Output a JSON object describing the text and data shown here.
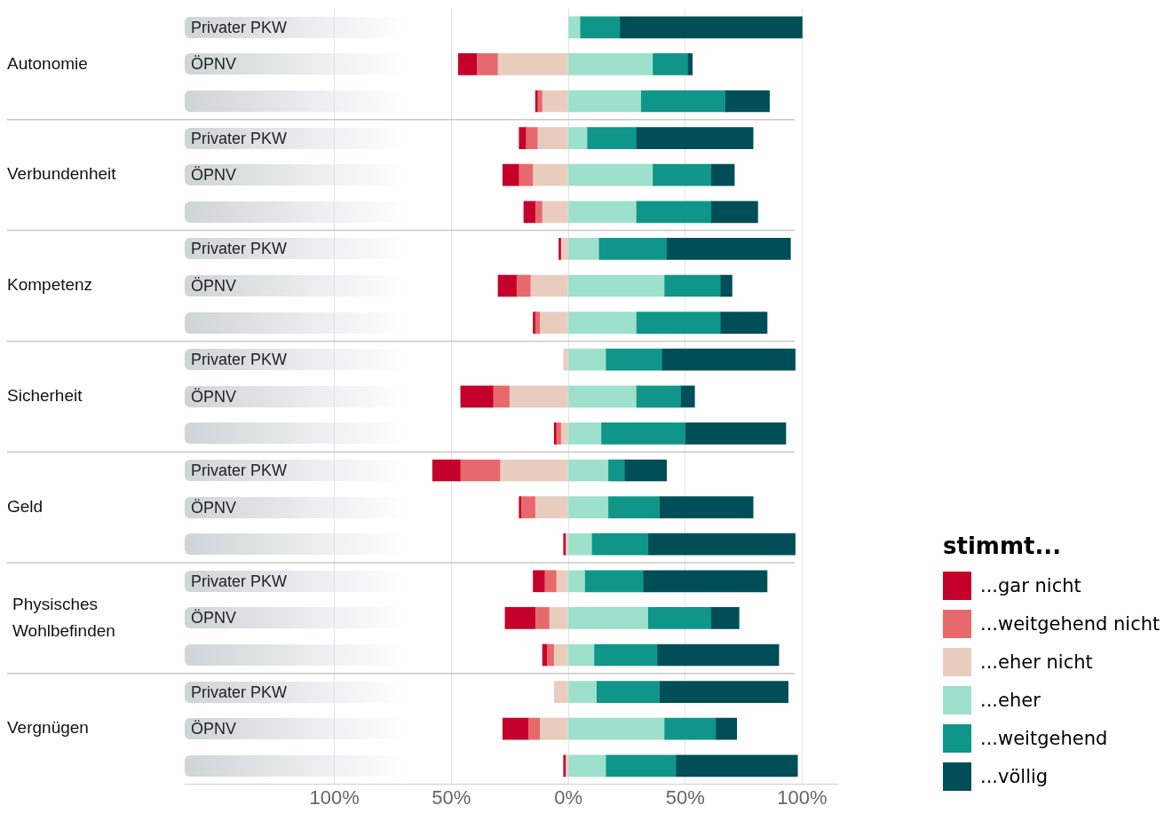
{
  "chart_data": {
    "type": "bar",
    "orientation": "horizontal",
    "stacked": true,
    "categories": [
      "Privater PKW",
      "ÖPNV",
      null,
      "Privater PKW",
      "ÖPNV",
      null,
      "Privater PKW",
      "ÖPNV",
      null,
      "Privater PKW",
      "ÖPNV",
      null,
      "Privater PKW",
      "ÖPNV",
      null,
      "Privater PKW",
      "ÖPNV",
      null,
      "Privater PKW",
      "ÖPNV",
      null
    ],
    "legend_title": "stimmt...",
    "legend": "right",
    "grid": "x",
    "xlim": [
      -164,
      115
    ],
    "xticks": [
      {
        "value": -100,
        "label": "100%"
      },
      {
        "value": -50,
        "label": "50%"
      },
      {
        "value": 0,
        "label": "0%"
      },
      {
        "value": 50,
        "label": "50%"
      },
      {
        "value": 100,
        "label": "100%"
      }
    ],
    "annotations": [
      "Autonomie",
      "Verbundenheit",
      "Kompetenz",
      "Sicherheit",
      "Geld",
      "Physisches Wohlbefinden",
      "Vergnügen"
    ],
    "series": [
      {
        "name": "...eher nicht",
        "color": "#e8cdbf",
        "values": [
          null,
          -30,
          -11,
          -13,
          -15,
          -11,
          -3,
          -16,
          -12,
          -2,
          -25,
          -3,
          -29,
          -14,
          -1,
          -5,
          -8,
          -6,
          -6,
          -12,
          -1
        ]
      },
      {
        "name": "...weitgehend nicht",
        "color": "#e8696b",
        "values": [
          null,
          -9,
          -2,
          -5,
          -6,
          -3,
          null,
          -6,
          -2,
          null,
          -7,
          -2,
          -17,
          -6,
          null,
          -5,
          -6,
          -3,
          null,
          -5,
          null
        ]
      },
      {
        "name": "...gar nicht",
        "color": "#c4002b",
        "values": [
          null,
          -8,
          -1,
          -3,
          -7,
          -5,
          -1,
          -8,
          -1,
          null,
          -14,
          -1,
          -12,
          -1,
          -1,
          -5,
          -13,
          -2,
          null,
          -11,
          -1
        ]
      },
      {
        "name": "...eher",
        "color": "#9de0cb",
        "values": [
          5,
          36,
          31,
          8,
          36,
          29,
          13,
          41,
          29,
          16,
          29,
          14,
          17,
          17,
          10,
          7,
          34,
          11,
          12,
          41,
          16
        ]
      },
      {
        "name": "...weitgehend",
        "color": "#0f9688",
        "values": [
          17,
          15,
          36,
          21,
          25,
          32,
          29,
          24,
          36,
          24,
          19,
          36,
          7,
          22,
          24,
          25,
          27,
          27,
          27,
          22,
          30
        ]
      },
      {
        "name": "...völlig",
        "color": "#004e57",
        "values": [
          78,
          2,
          19,
          50,
          10,
          20,
          53,
          5,
          20,
          57,
          6,
          43,
          18,
          40,
          63,
          53,
          12,
          52,
          55,
          9,
          52
        ]
      }
    ]
  }
}
